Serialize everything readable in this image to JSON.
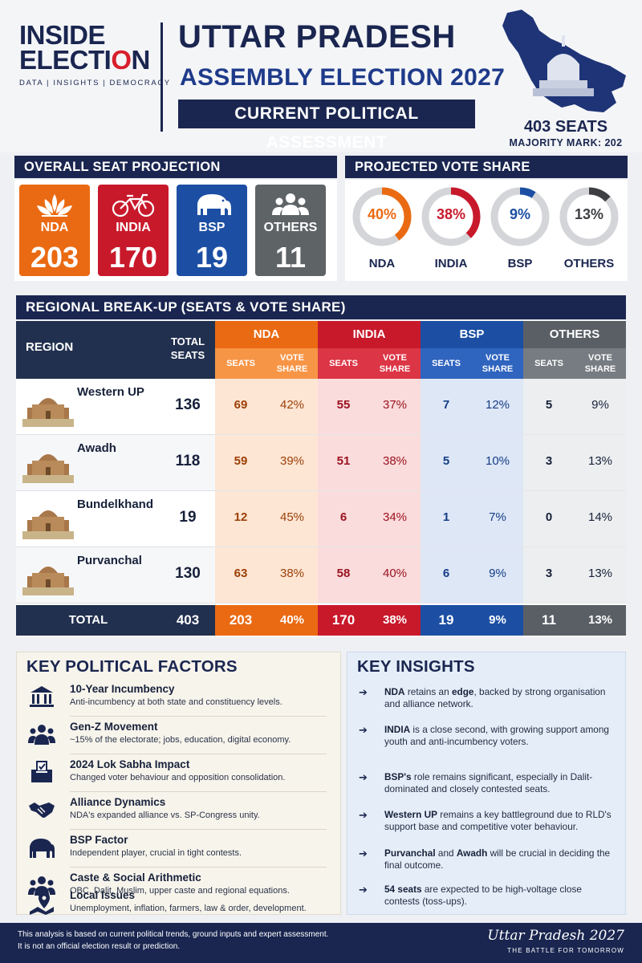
{
  "header": {
    "logo_line1": "INSIDE",
    "logo_line2_a": "ELECTI",
    "logo_line2_b": "O",
    "logo_line2_c": "N",
    "tagline": "DATA | INSIGHTS | DEMOCRACY",
    "title": "UTTAR PRADESH",
    "subtitle": "ASSEMBLY ELECTION 2027",
    "banner": "CURRENT POLITICAL ASSESSMENT",
    "total_seats": "403 SEATS",
    "majority": "MAJORITY MARK: 202"
  },
  "seat_projection": {
    "title": "OVERALL SEAT PROJECTION",
    "parties": [
      {
        "name": "NDA",
        "seats": "203",
        "color": "#ea6a13",
        "icon": "lotus-icon"
      },
      {
        "name": "INDIA",
        "seats": "170",
        "color": "#c8192b",
        "icon": "bicycle-icon"
      },
      {
        "name": "BSP",
        "seats": "19",
        "color": "#1c4fa3",
        "icon": "elephant-icon"
      },
      {
        "name": "OTHERS",
        "seats": "11",
        "color": "#5e6366",
        "icon": "people-icon"
      }
    ]
  },
  "vote_share": {
    "title": "PROJECTED VOTE SHARE",
    "items": [
      {
        "name": "NDA",
        "label": "40%",
        "value": 40,
        "color": "#ea6a13"
      },
      {
        "name": "INDIA",
        "label": "38%",
        "value": 38,
        "color": "#c8192b"
      },
      {
        "name": "BSP",
        "label": "9%",
        "value": 9,
        "color": "#1c4fa3"
      },
      {
        "name": "OTHERS",
        "label": "13%",
        "value": 13,
        "color": "#3d3f42"
      }
    ]
  },
  "regional": {
    "title": "REGIONAL BREAK-UP (SEATS & VOTE SHARE)",
    "col_region": "REGION",
    "col_total_1": "TOTAL",
    "col_total_2": "SEATS",
    "party_headers": [
      "NDA",
      "INDIA",
      "BSP",
      "OTHERS"
    ],
    "sub_seats": "SEATS",
    "sub_vote_1": "VOTE",
    "sub_vote_2": "SHARE",
    "rows": [
      {
        "region": "Western UP",
        "total": "136",
        "vals": [
          "69",
          "42%",
          "55",
          "37%",
          "7",
          "12%",
          "5",
          "9%"
        ]
      },
      {
        "region": "Awadh",
        "total": "118",
        "vals": [
          "59",
          "39%",
          "51",
          "38%",
          "5",
          "10%",
          "3",
          "13%"
        ]
      },
      {
        "region": "Bundelkhand",
        "total": "19",
        "vals": [
          "12",
          "45%",
          "6",
          "34%",
          "1",
          "7%",
          "0",
          "14%"
        ]
      },
      {
        "region": "Purvanchal",
        "total": "130",
        "vals": [
          "63",
          "38%",
          "58",
          "40%",
          "6",
          "9%",
          "3",
          "13%"
        ]
      }
    ],
    "total_row": {
      "label": "TOTAL",
      "total": "403",
      "vals": [
        "203",
        "40%",
        "170",
        "38%",
        "19",
        "9%",
        "11",
        "13%"
      ]
    }
  },
  "factors": {
    "title": "KEY POLITICAL FACTORS",
    "items": [
      {
        "title": "10-Year Incumbency",
        "desc": "Anti-incumbency at both state and constituency levels.",
        "icon": "government-building-icon"
      },
      {
        "title": "Gen-Z Movement",
        "desc": "~15% of the electorate; jobs, education, digital economy.",
        "icon": "group-icon"
      },
      {
        "title": "2024 Lok Sabha Impact",
        "desc": "Changed voter behaviour and opposition consolidation.",
        "icon": "ballot-box-icon"
      },
      {
        "title": "Alliance Dynamics",
        "desc": "NDA's expanded alliance vs. SP-Congress unity.",
        "icon": "handshake-icon"
      },
      {
        "title": "BSP Factor",
        "desc": "Independent player, crucial in tight contests.",
        "icon": "elephant-icon"
      },
      {
        "title": "Caste & Social Arithmetic",
        "desc": "OBC, Dalit, Muslim, upper caste and regional equations.",
        "icon": "people-icon"
      },
      {
        "title": "Local Issues",
        "desc": "Unemployment, inflation, farmers, law & order, development.",
        "icon": "map-pin-icon"
      }
    ]
  },
  "insights": {
    "title": "KEY INSIGHTS",
    "arrow": "➔",
    "items": [
      {
        "b1": "NDA",
        "t1": " retains an ",
        "b2": "edge",
        "t2": ", backed by strong organisation and alliance network."
      },
      {
        "b1": "INDIA",
        "t1": " is a close second, with growing support among youth and anti-incumbency voters.",
        "b2": "",
        "t2": ""
      },
      {
        "b1": "BSP's",
        "t1": " role remains significant, especially in Dalit-dominated and closely contested seats.",
        "b2": "",
        "t2": ""
      },
      {
        "b1": "Western UP",
        "t1": " remains a key battleground due to RLD's support base and competitive voter behaviour.",
        "b2": "",
        "t2": ""
      },
      {
        "b1": "Purvanchal",
        "t1": " and ",
        "b2": "Awadh",
        "t2": " will be crucial in deciding the final outcome."
      },
      {
        "b1": "54 seats",
        "t1": " are expected to be high-voltage close contests (toss-ups).",
        "b2": "",
        "t2": ""
      }
    ]
  },
  "footer": {
    "disclaimer_1": "This analysis is based on current political trends, ground inputs and expert assessment.",
    "disclaimer_2": "It is not an official election result or prediction.",
    "signature": "Uttar Pradesh 2027",
    "signature_sub": "THE BATTLE FOR TOMORROW"
  }
}
